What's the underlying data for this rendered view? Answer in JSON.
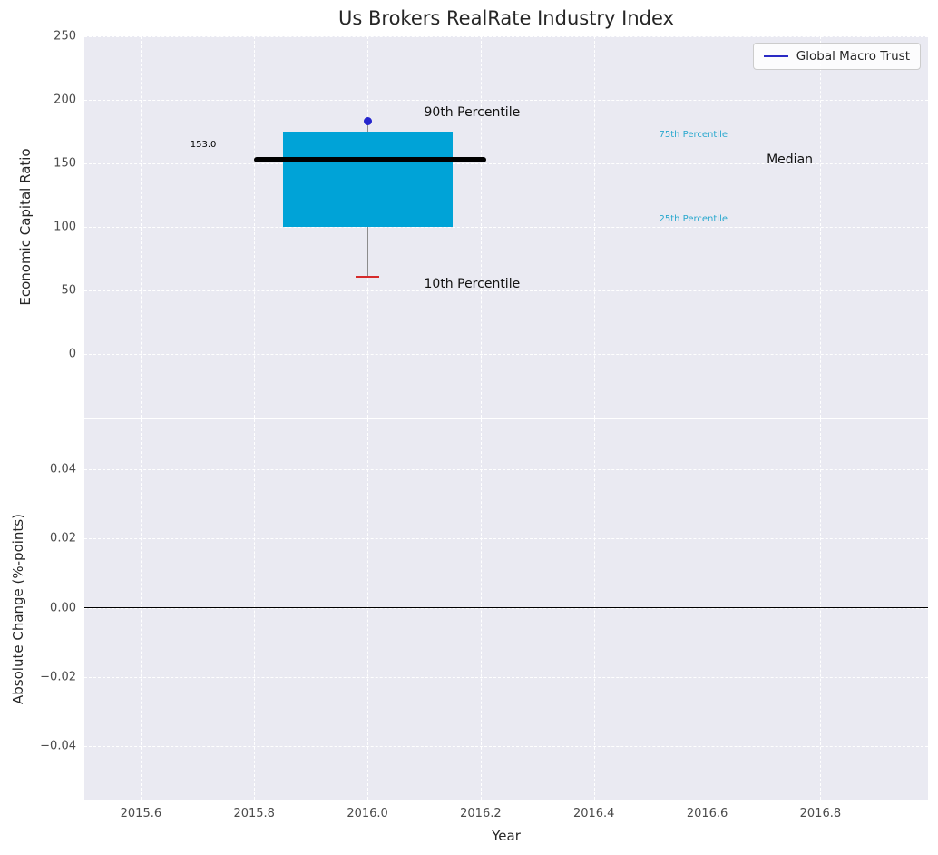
{
  "chart_data": {
    "type": "boxplot",
    "title": "Us Brokers RealRate Industry Index",
    "legend": {
      "label": "Global Macro Trust",
      "line_color": "#2a2ac4"
    },
    "colors": {
      "plot_bg": "#eaeaf2",
      "grid": "#ffffff"
    },
    "top_plot": {
      "ylabel": "Economic Capital Ratio",
      "ylim": [
        -50,
        250
      ],
      "ytick_values": [
        250,
        200,
        150,
        100,
        50,
        0
      ],
      "ytick_labels": [
        "250",
        "200",
        "150",
        "100",
        "50",
        "0"
      ],
      "xlim": [
        2015.5,
        2016.99
      ],
      "xticks": [
        2015.6,
        2015.8,
        2016.0,
        2016.2,
        2016.4,
        2016.6,
        2016.8
      ],
      "box": {
        "x": 2016.0,
        "box_left": 2015.85,
        "box_right": 2016.15,
        "median_left": 2015.8,
        "median_right": 2016.21,
        "p10": 61.0,
        "p25": 100.0,
        "median": 153.0,
        "p75": 175.0,
        "p90": 183.0,
        "box_color": "#00a3d7",
        "median_color": "#000000",
        "cap_color": "#d62b2b",
        "marker_color": "#2525cd",
        "whisker_color": "#8c8c8c"
      },
      "annotations": [
        {
          "text": "153.0",
          "x": 2015.71,
          "y": 164,
          "color": "#000000",
          "size": 10,
          "align": "center"
        },
        {
          "text": "90th Percentile",
          "x": 2016.1,
          "y": 190,
          "color": "#111111",
          "size": 14,
          "align": "left"
        },
        {
          "text": "10th Percentile",
          "x": 2016.1,
          "y": 55,
          "color": "#111111",
          "size": 14,
          "align": "left"
        },
        {
          "text": "75th Percentile",
          "x": 2016.515,
          "y": 172,
          "color": "#29a8ce",
          "size": 10,
          "align": "left"
        },
        {
          "text": "25th Percentile",
          "x": 2016.515,
          "y": 106,
          "color": "#29a8ce",
          "size": 10,
          "align": "left"
        },
        {
          "text": "Median",
          "x": 2016.705,
          "y": 153,
          "color": "#111111",
          "size": 14,
          "align": "left"
        }
      ]
    },
    "bottom_plot": {
      "ylabel": "Absolute Change (%-points)",
      "ylim": [
        -0.0555,
        0.0545
      ],
      "ytick_values": [
        0.04,
        0.02,
        0.0,
        -0.02,
        -0.04
      ],
      "ytick_labels": [
        "0.04",
        "0.02",
        "0.00",
        "−0.02",
        "−0.04"
      ],
      "xlim": [
        2015.5,
        2016.99
      ],
      "xticks": [
        2015.6,
        2015.8,
        2016.0,
        2016.2,
        2016.4,
        2016.6,
        2016.8
      ],
      "xtick_labels": [
        "2015.6",
        "2015.8",
        "2016.0",
        "2016.2",
        "2016.4",
        "2016.6",
        "2016.8"
      ],
      "xlabel": "Year",
      "zero_line": 0.0,
      "zero_line_color": "#000000"
    }
  }
}
